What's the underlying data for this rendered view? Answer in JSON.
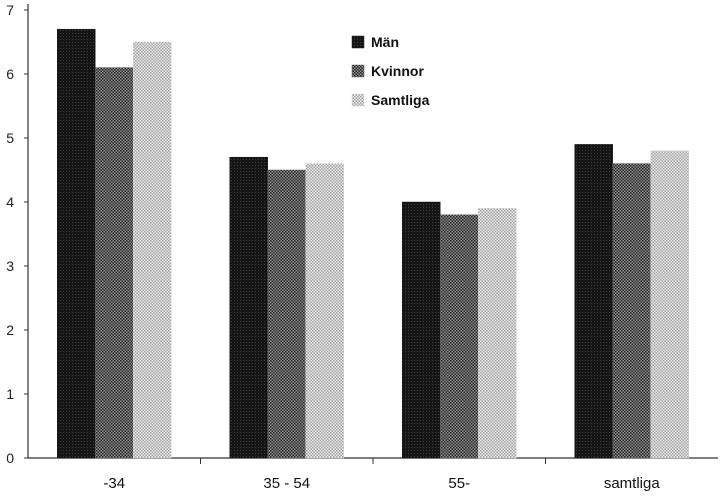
{
  "chart_data": {
    "type": "bar",
    "categories": [
      "-34",
      "35 - 54",
      "55-",
      "samtliga"
    ],
    "series": [
      {
        "name": "Män",
        "values": [
          6.7,
          4.7,
          4.0,
          4.9
        ]
      },
      {
        "name": "Kvinnor",
        "values": [
          6.1,
          4.5,
          3.8,
          4.6
        ]
      },
      {
        "name": "Samtliga",
        "values": [
          6.5,
          4.6,
          3.9,
          4.8
        ]
      }
    ],
    "title": "",
    "xlabel": "",
    "ylabel": "",
    "ylim": [
      0,
      7
    ],
    "yticks": [
      "0",
      "1",
      "2",
      "3",
      "4",
      "5",
      "6",
      "7"
    ],
    "grid": false,
    "legend_position": "top-center"
  },
  "colors": {
    "series_fill": [
      "#1a1a1a",
      "#5f5f5f",
      "#d2d2d2"
    ],
    "axis": "#333333"
  }
}
